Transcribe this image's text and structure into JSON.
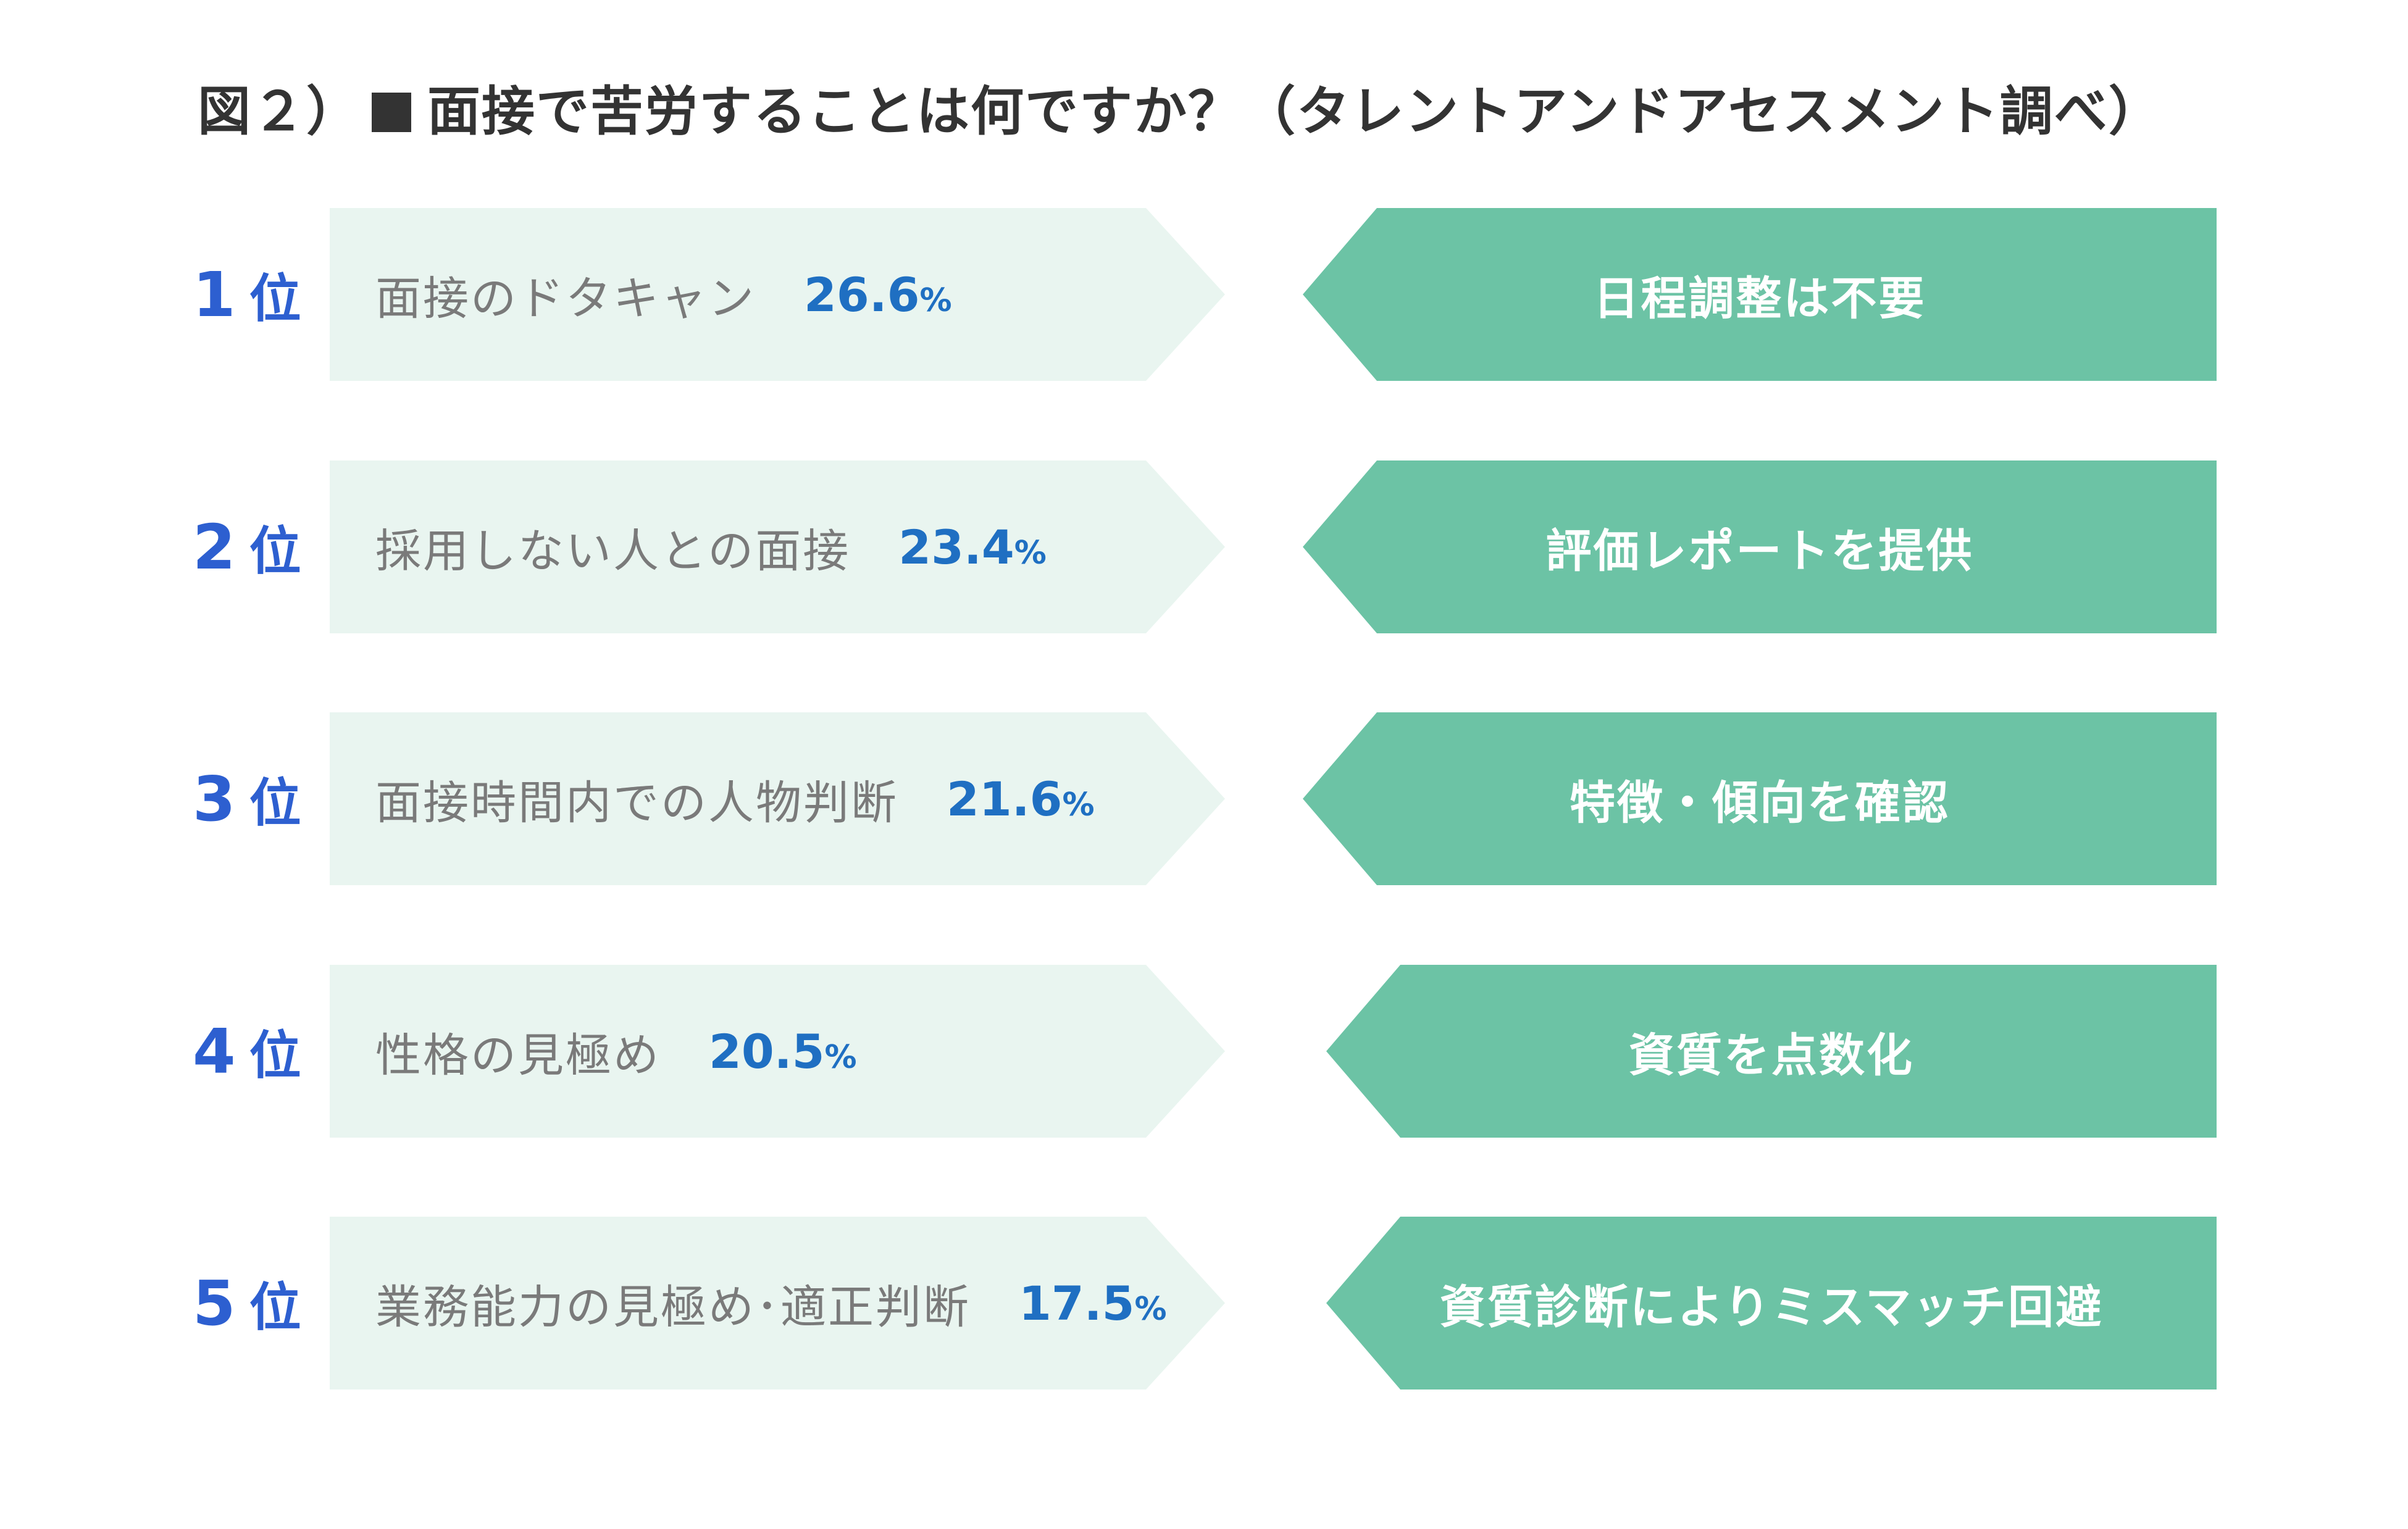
{
  "title": {
    "prefix": "図２）",
    "text": "面接で苦労することは何ですか？（タレントアンドアセスメント調べ）"
  },
  "rank_unit": "位",
  "rows": [
    {
      "rank": "1",
      "issue": "面接のドタキャン",
      "percent": "26.6",
      "percent_sign": "%",
      "solution": "日程調整は不要"
    },
    {
      "rank": "2",
      "issue": "採用しない人との面接",
      "percent": "23.4",
      "percent_sign": "%",
      "solution": "評価レポートを提供"
    },
    {
      "rank": "3",
      "issue": "面接時間内での人物判断",
      "percent": "21.6",
      "percent_sign": "%",
      "solution": "特徴・傾向を確認"
    },
    {
      "rank": "4",
      "issue": "性格の見極め",
      "percent": "20.5",
      "percent_sign": "%",
      "solution": "資質を点数化"
    },
    {
      "rank": "5",
      "issue": "業務能力の見極め･適正判断",
      "percent": "17.5",
      "percent_sign": "%",
      "solution": "資質診断によりミスマッチ回避"
    }
  ],
  "colors": {
    "rank": "#2d5fd0",
    "percent": "#1f6fc2",
    "issue_bg": "#e9f5f0",
    "solution_bg": "#6cc3a5",
    "title": "#333333"
  }
}
